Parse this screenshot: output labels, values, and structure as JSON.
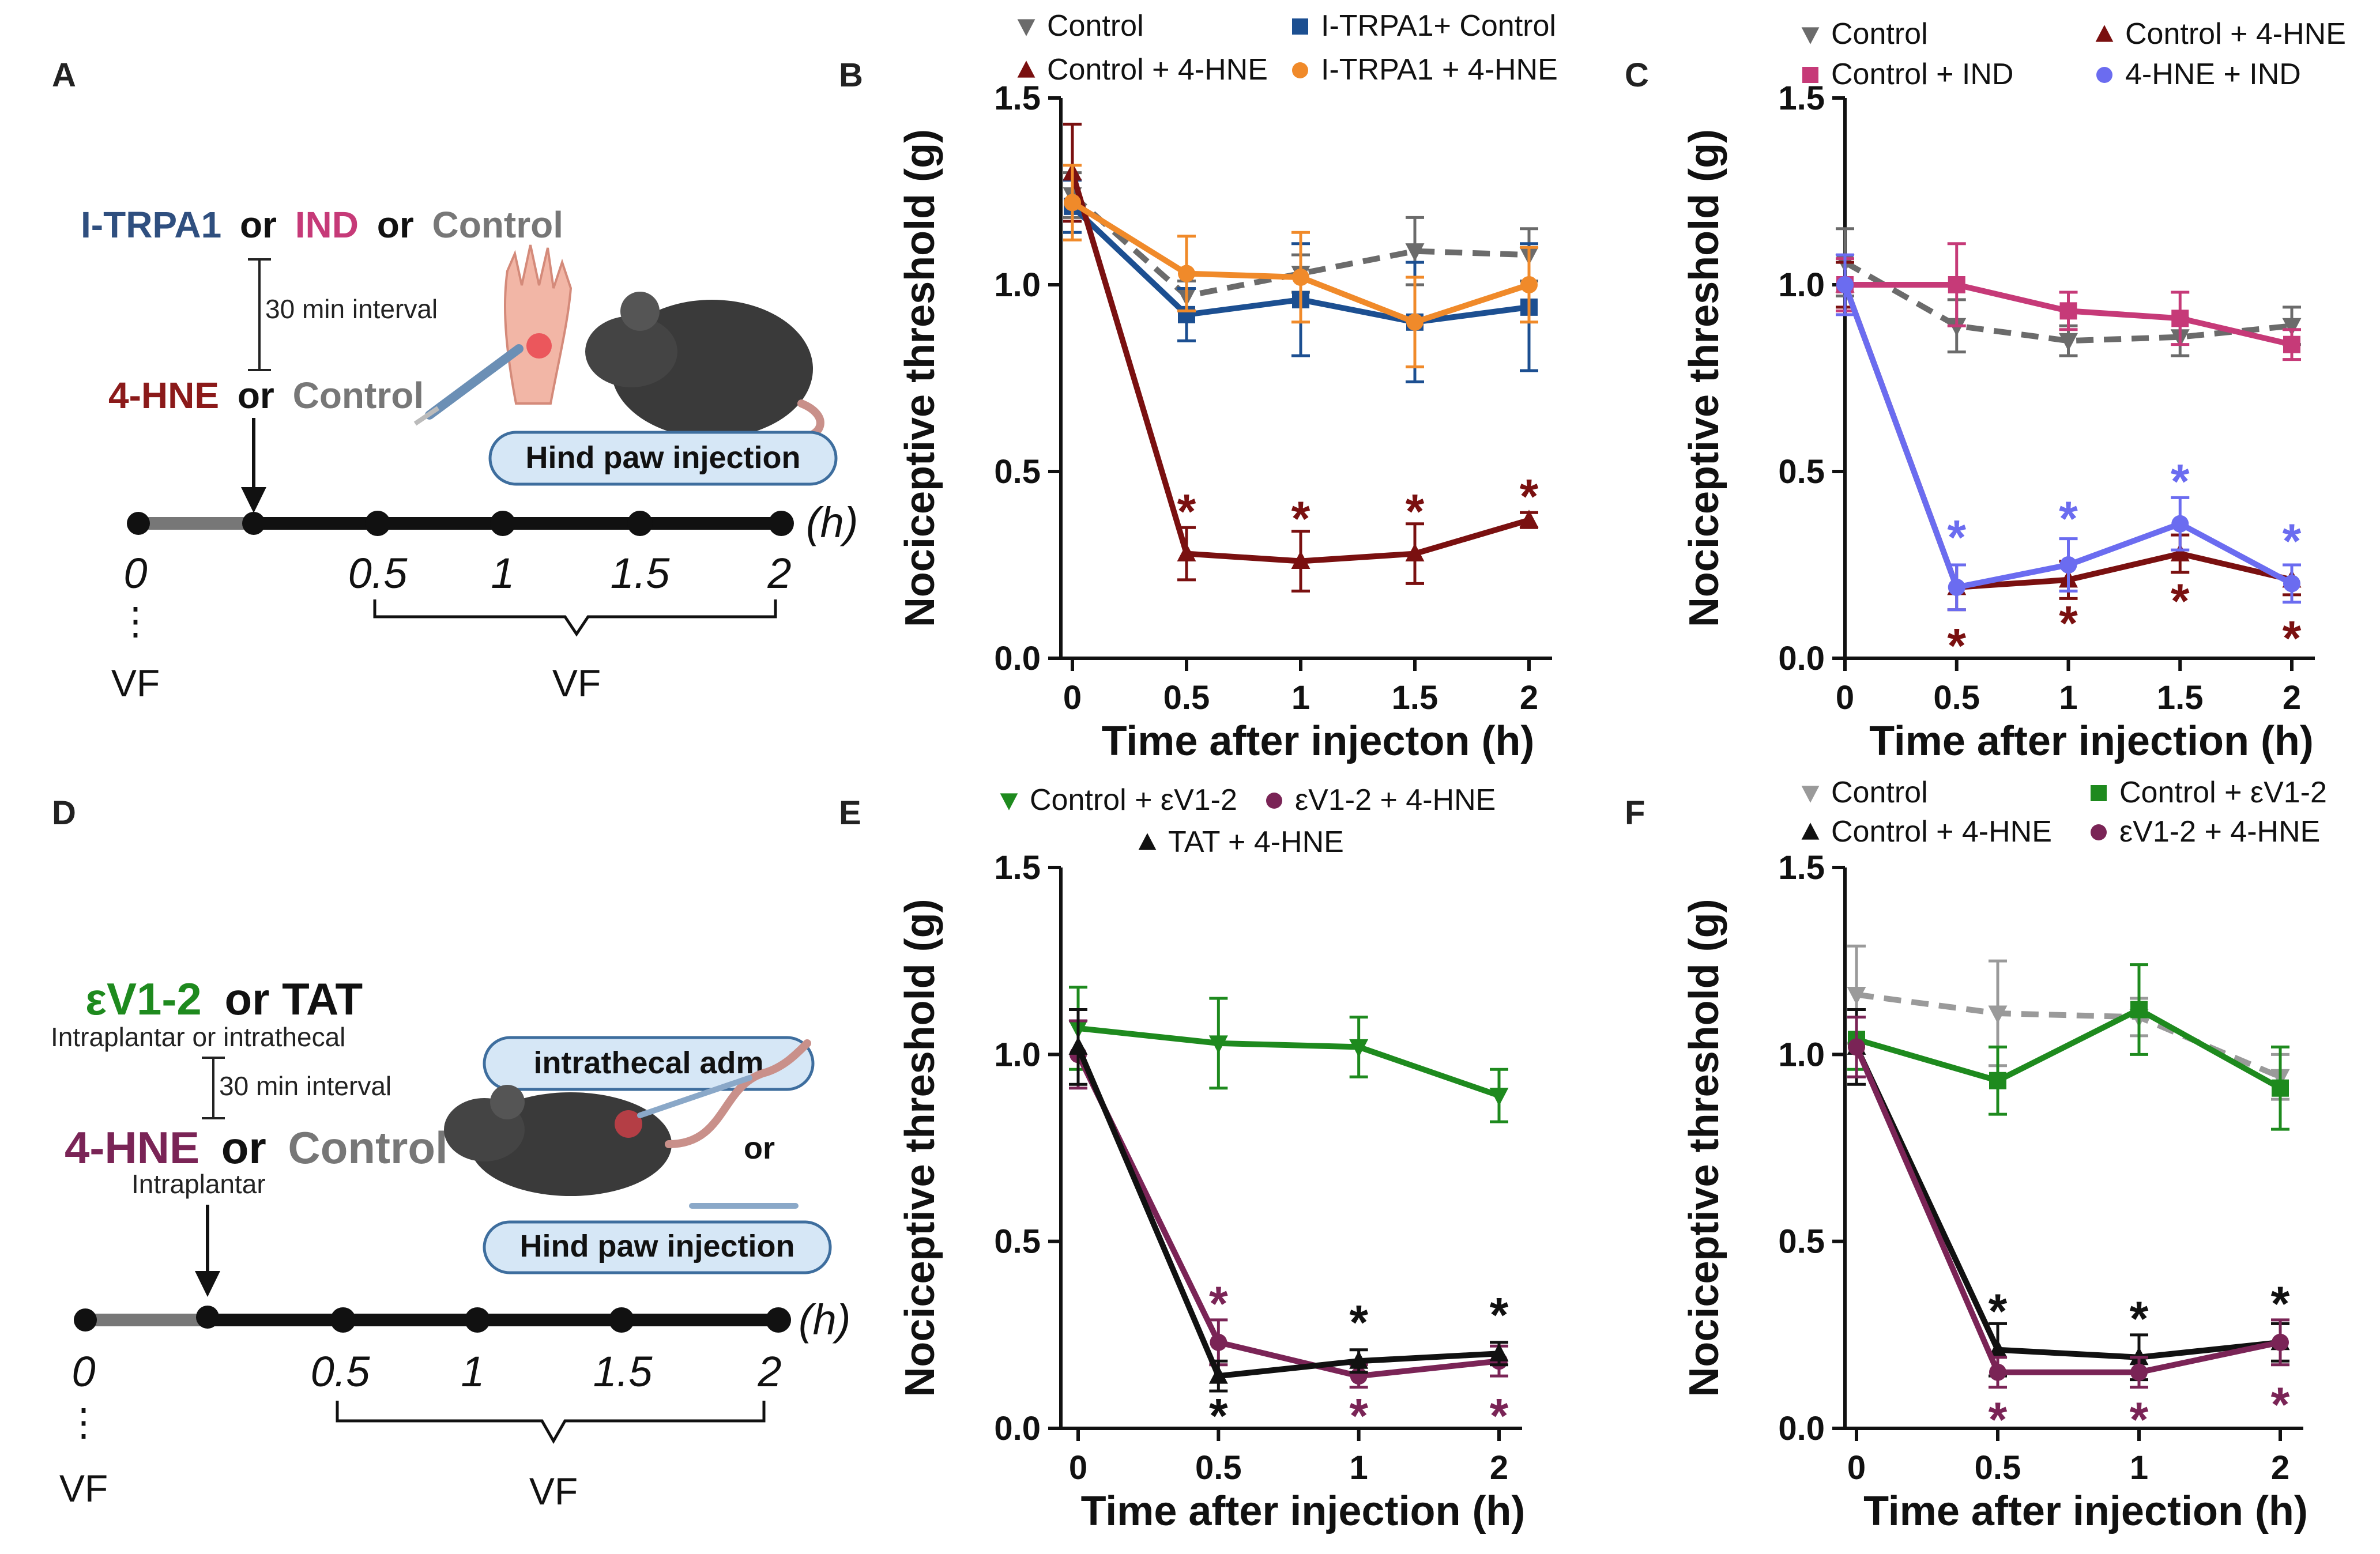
{
  "colors": {
    "control": "#6b6b6b",
    "control_4hne": "#7a1010",
    "itrpa1_control": "#1c4f91",
    "itrpa1_4hne": "#f08a2a",
    "control_ind": "#c63a78",
    "hne_ind": "#6b6cf0",
    "ev12": "#1e8a1e",
    "ev12_4hne": "#7a2456",
    "tat_4hne": "#111111",
    "control_light": "#9a9a9a"
  },
  "schematic_A": {
    "letter": "A",
    "treat_1": "I-TRPA1",
    "or_1": "or",
    "treat_2": "IND",
    "or_2": "or",
    "treat_3": "Control",
    "interval": "30 min interval",
    "inj_1": "4-HNE",
    "or_3": "or",
    "inj_2": "Control",
    "box": "Hind paw injection",
    "t0": "0",
    "t05": "0.5",
    "t1": "1",
    "t15": "1.5",
    "t2": "2",
    "unit": "(h)",
    "vf_left": "VF",
    "vf_right": "VF",
    "dots": "⋮"
  },
  "schematic_D": {
    "letter": "D",
    "treat_1": "εV1-2",
    "or_1": "or TAT",
    "route_1": "Intraplantar or intrathecal",
    "interval": "30 min interval",
    "inj_1": "4-HNE",
    "or_2": "or",
    "inj_2": "Control",
    "route_2": "Intraplantar",
    "box_1": "intrathecal adm",
    "or_3": "or",
    "box_2": "Hind paw injection",
    "t0": "0",
    "t05": "0.5",
    "t1": "1",
    "t15": "1.5",
    "t2": "2",
    "unit": "(h)",
    "vf_left": "VF",
    "vf_right": "VF",
    "dots": "⋮"
  },
  "chart_data": [
    {
      "panel": "B",
      "type": "line",
      "xlabel": "Time after injecton (h)",
      "ylabel": "Nociceptive threshold (g)",
      "x": [
        0,
        0.5,
        1,
        1.5,
        2
      ],
      "xticks": [
        "0",
        "0.5",
        "1",
        "1.5",
        "2"
      ],
      "ylim": [
        0,
        1.5
      ],
      "yticks": [
        "0.0",
        "0.5",
        "1.0",
        "1.5"
      ],
      "series": [
        {
          "name": "Control",
          "key": "control",
          "dashed": true,
          "marker": "tri-down",
          "values": [
            1.24,
            0.97,
            1.03,
            1.09,
            1.08
          ],
          "err": [
            0.06,
            0.04,
            0.05,
            0.09,
            0.07
          ]
        },
        {
          "name": "I-TRPA1+ Control",
          "key": "itrpa1_control",
          "dashed": false,
          "marker": "square",
          "values": [
            1.21,
            0.92,
            0.96,
            0.9,
            0.94
          ],
          "err": [
            0.07,
            0.07,
            0.15,
            0.16,
            0.17
          ]
        },
        {
          "name": "Control + 4-HNE",
          "key": "control_4hne",
          "dashed": false,
          "marker": "tri-up",
          "values": [
            1.3,
            0.28,
            0.26,
            0.28,
            0.37
          ],
          "err": [
            0.13,
            0.07,
            0.08,
            0.08,
            0.02
          ]
        },
        {
          "name": "I-TRPA1 + 4-HNE",
          "key": "itrpa1_4hne",
          "dashed": false,
          "marker": "circle",
          "values": [
            1.22,
            1.03,
            1.02,
            0.9,
            1.0
          ],
          "err": [
            0.1,
            0.1,
            0.12,
            0.12,
            0.1
          ]
        }
      ],
      "annotations": [
        {
          "x": 0.5,
          "y": 0.38,
          "text": "*",
          "key": "control_4hne"
        },
        {
          "x": 1,
          "y": 0.36,
          "text": "*",
          "key": "control_4hne"
        },
        {
          "x": 1.5,
          "y": 0.38,
          "text": "*",
          "key": "control_4hne"
        },
        {
          "x": 2,
          "y": 0.42,
          "text": "*",
          "key": "control_4hne"
        }
      ]
    },
    {
      "panel": "C",
      "type": "line",
      "xlabel": "Time after injection (h)",
      "ylabel": "Nociceptive threshold (g)",
      "x": [
        0,
        0.5,
        1,
        1.5,
        2
      ],
      "xticks": [
        "0",
        "0.5",
        "1",
        "1.5",
        "2"
      ],
      "ylim": [
        0,
        1.5
      ],
      "yticks": [
        "0.0",
        "0.5",
        "1.0",
        "1.5"
      ],
      "series": [
        {
          "name": "Control",
          "key": "control",
          "dashed": true,
          "marker": "tri-down",
          "values": [
            1.06,
            0.89,
            0.85,
            0.86,
            0.89
          ],
          "err": [
            0.09,
            0.07,
            0.04,
            0.05,
            0.05
          ]
        },
        {
          "name": "Control + 4-HNE",
          "key": "control_4hne",
          "dashed": false,
          "marker": "tri-up",
          "values": [
            1.0,
            0.19,
            0.21,
            0.28,
            0.21
          ],
          "err": [
            0.06,
            0.06,
            0.05,
            0.05,
            0.04
          ]
        },
        {
          "name": "Control + IND",
          "key": "control_ind",
          "dashed": false,
          "marker": "square",
          "values": [
            1.0,
            1.0,
            0.93,
            0.91,
            0.84
          ],
          "err": [
            0.07,
            0.11,
            0.05,
            0.07,
            0.04
          ]
        },
        {
          "name": "4-HNE + IND",
          "key": "hne_ind",
          "dashed": false,
          "marker": "circle",
          "values": [
            1.0,
            0.19,
            0.25,
            0.36,
            0.2
          ],
          "err": [
            0.08,
            0.06,
            0.07,
            0.07,
            0.05
          ]
        }
      ],
      "annotations": [
        {
          "x": 0.5,
          "y": 0.31,
          "text": "*",
          "key": "hne_ind"
        },
        {
          "x": 1,
          "y": 0.36,
          "text": "*",
          "key": "hne_ind"
        },
        {
          "x": 1.5,
          "y": 0.46,
          "text": "*",
          "key": "hne_ind"
        },
        {
          "x": 2,
          "y": 0.3,
          "text": "*",
          "key": "hne_ind"
        },
        {
          "x": 0.5,
          "y": 0.02,
          "text": "*",
          "key": "control_4hne"
        },
        {
          "x": 1,
          "y": 0.08,
          "text": "*",
          "key": "control_4hne"
        },
        {
          "x": 1.5,
          "y": 0.14,
          "text": "*",
          "key": "control_4hne"
        },
        {
          "x": 2,
          "y": 0.04,
          "text": "*",
          "key": "control_4hne"
        }
      ]
    },
    {
      "panel": "E",
      "type": "line",
      "xlabel": "Time after injection (h)",
      "ylabel": "Nociceptive threshold (g)",
      "x": [
        0,
        0.5,
        1,
        2
      ],
      "xticks": [
        "0",
        "0.5",
        "1",
        "2"
      ],
      "ylim": [
        0,
        1.5
      ],
      "yticks": [
        "0.0",
        "0.5",
        "1.0",
        "1.5"
      ],
      "series": [
        {
          "name": "Control + εV1-2",
          "key": "ev12",
          "dashed": false,
          "marker": "tri-down",
          "values": [
            1.07,
            1.03,
            1.02,
            0.89
          ],
          "err": [
            0.11,
            0.12,
            0.08,
            0.07
          ]
        },
        {
          "name": "εV1-2 + 4-HNE",
          "key": "ev12_4hne",
          "dashed": false,
          "marker": "circle",
          "values": [
            1.0,
            0.23,
            0.14,
            0.18
          ],
          "err": [
            0.09,
            0.06,
            0.03,
            0.04
          ]
        },
        {
          "name": "TAT + 4-HNE",
          "key": "tat_4hne",
          "dashed": false,
          "marker": "tri-up",
          "values": [
            1.02,
            0.14,
            0.18,
            0.2
          ],
          "err": [
            0.1,
            0.04,
            0.03,
            0.03
          ]
        }
      ],
      "annotations": [
        {
          "x": 0.5,
          "y": 0.32,
          "text": "*",
          "key": "ev12_4hne"
        },
        {
          "x": 0.5,
          "y": 0.02,
          "text": "*",
          "key": "tat_4hne"
        },
        {
          "x": 1,
          "y": 0.27,
          "text": "*",
          "key": "tat_4hne"
        },
        {
          "x": 1,
          "y": 0.02,
          "text": "*",
          "key": "ev12_4hne"
        },
        {
          "x": 2,
          "y": 0.29,
          "text": "*",
          "key": "tat_4hne"
        },
        {
          "x": 2,
          "y": 0.02,
          "text": "*",
          "key": "ev12_4hne"
        }
      ]
    },
    {
      "panel": "F",
      "type": "line",
      "xlabel": "Time after injection (h)",
      "ylabel": "Nociceptive threshold (g)",
      "x": [
        0,
        0.5,
        1,
        2
      ],
      "xticks": [
        "0",
        "0.5",
        "1",
        "2"
      ],
      "ylim": [
        0,
        1.5
      ],
      "yticks": [
        "0.0",
        "0.5",
        "1.0",
        "1.5"
      ],
      "series": [
        {
          "name": "Control",
          "key": "control_light",
          "dashed": true,
          "marker": "tri-down",
          "values": [
            1.16,
            1.11,
            1.1,
            0.94
          ],
          "err": [
            0.13,
            0.14,
            0.05,
            0.06
          ]
        },
        {
          "name": "Control + εV1-2",
          "key": "ev12",
          "dashed": false,
          "marker": "square",
          "values": [
            1.04,
            0.93,
            1.12,
            0.91
          ],
          "err": [
            0.08,
            0.09,
            0.12,
            0.11
          ]
        },
        {
          "name": "Control + 4-HNE",
          "key": "tat_4hne",
          "dashed": false,
          "marker": "tri-up",
          "values": [
            1.02,
            0.21,
            0.19,
            0.23
          ],
          "err": [
            0.1,
            0.07,
            0.06,
            0.05
          ]
        },
        {
          "name": "εV1-2 + 4-HNE",
          "key": "ev12_4hne",
          "dashed": false,
          "marker": "circle",
          "values": [
            1.02,
            0.15,
            0.15,
            0.23
          ],
          "err": [
            0.08,
            0.04,
            0.04,
            0.06
          ]
        }
      ],
      "annotations": [
        {
          "x": 0.5,
          "y": 0.3,
          "text": "*",
          "key": "tat_4hne"
        },
        {
          "x": 1,
          "y": 0.28,
          "text": "*",
          "key": "tat_4hne"
        },
        {
          "x": 2,
          "y": 0.32,
          "text": "*",
          "key": "tat_4hne"
        },
        {
          "x": 0.5,
          "y": 0.01,
          "text": "*",
          "key": "ev12_4hne"
        },
        {
          "x": 1,
          "y": 0.01,
          "text": "*",
          "key": "ev12_4hne"
        },
        {
          "x": 2,
          "y": 0.05,
          "text": "*",
          "key": "ev12_4hne"
        }
      ]
    }
  ]
}
